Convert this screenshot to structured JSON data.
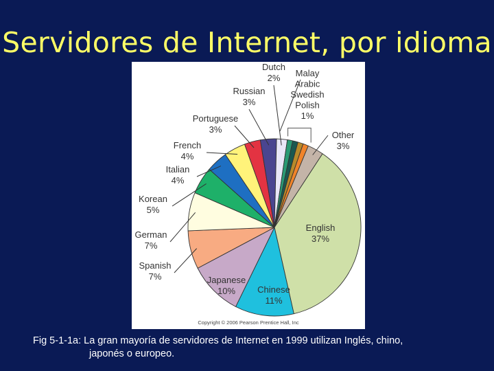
{
  "slide": {
    "title": "Servidores de Internet, por idioma",
    "caption_line1": "Fig 5-1-1a: La gran mayoría de servidores de Internet en 1999 utilizan Inglés, chino,",
    "caption_line2": "japonés o europeo.",
    "copyright": "Copyright © 2006 Pearson Prentice Hall, Inc"
  },
  "chart_data": {
    "type": "pie",
    "unit": "%",
    "slices": [
      {
        "name": "English",
        "value": 37,
        "label": "37%",
        "color": "#cfe0a8"
      },
      {
        "name": "Chinese",
        "value": 11,
        "label": "11%",
        "color": "#1fc0de"
      },
      {
        "name": "Japanese",
        "value": 10,
        "label": "10%",
        "color": "#c7a9c8"
      },
      {
        "name": "Spanish",
        "value": 7,
        "label": "7%",
        "color": "#f8ab82"
      },
      {
        "name": "German",
        "value": 7,
        "label": "7%",
        "color": "#fffde0"
      },
      {
        "name": "Korean",
        "value": 5,
        "label": "5%",
        "color": "#1eb069"
      },
      {
        "name": "Italian",
        "value": 4,
        "label": "4%",
        "color": "#1e6fc2"
      },
      {
        "name": "French",
        "value": 4,
        "label": "4%",
        "color": "#fff37a"
      },
      {
        "name": "Portuguese",
        "value": 3,
        "label": "3%",
        "color": "#e33342"
      },
      {
        "name": "Russian",
        "value": 3,
        "label": "3%",
        "color": "#4a4590"
      },
      {
        "name": "Dutch",
        "value": 2,
        "label": "2%",
        "color": "#e9e7f8"
      },
      {
        "name": "Malay",
        "value": 1,
        "label": "1%",
        "color": "#2a9a74"
      },
      {
        "name": "Arabic",
        "value": 1,
        "label": "1%",
        "color": "#1a5850"
      },
      {
        "name": "Swedish",
        "value": 1,
        "label": "1%",
        "color": "#b98a2a"
      },
      {
        "name": "Polish",
        "value": 1,
        "label": "1%",
        "color": "#f0842a"
      },
      {
        "name": "Other",
        "value": 3,
        "label": "3%",
        "color": "#c4b4a8"
      }
    ],
    "group_label": {
      "names": [
        "Malay",
        "Arabic",
        "Swedish",
        "Polish"
      ],
      "value_label": "1%"
    }
  }
}
